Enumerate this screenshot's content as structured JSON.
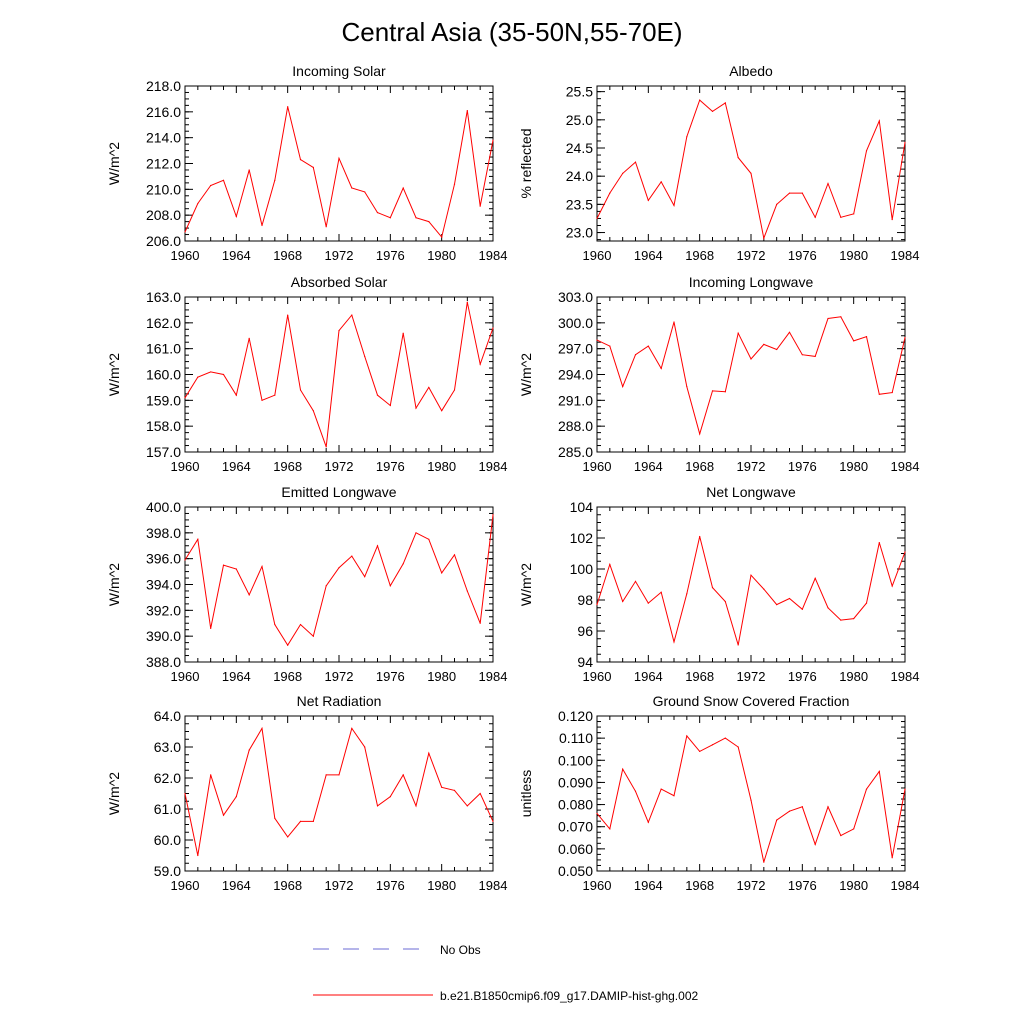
{
  "title": "Central Asia (35-50N,55-70E)",
  "colors": {
    "model": "#ff0000",
    "obs": "#6b6bd6",
    "axes": "#000000"
  },
  "legend": [
    {
      "label": "No Obs",
      "style": "dashed",
      "color": "#6b6bd6"
    },
    {
      "label": "b.e21.B1850cmip6.f09_g17.DAMIP-hist-ghg.002",
      "style": "solid",
      "color": "#ff0000"
    }
  ],
  "chart_data": [
    {
      "type": "line",
      "title": "Incoming Solar",
      "xlabel": "",
      "ylabel": "W/m^2",
      "xlim": [
        1960,
        1984
      ],
      "ylim": [
        206.0,
        218.0
      ],
      "xticks": [
        "1960",
        "1964",
        "1968",
        "1972",
        "1976",
        "1980",
        "1984"
      ],
      "yticks": [
        "206.0",
        "208.0",
        "210.0",
        "212.0",
        "214.0",
        "216.0",
        "218.0"
      ],
      "x": [
        1960,
        1961,
        1962,
        1963,
        1964,
        1965,
        1966,
        1967,
        1968,
        1969,
        1970,
        1971,
        1972,
        1973,
        1974,
        1975,
        1976,
        1977,
        1978,
        1979,
        1980,
        1981,
        1982,
        1983,
        1984
      ],
      "series": [
        {
          "name": "b.e21.B1850cmip6.f09_g17.DAMIP-hist-ghg.002",
          "values": [
            206.7,
            208.9,
            210.3,
            210.7,
            207.9,
            211.5,
            207.2,
            210.7,
            216.4,
            212.3,
            211.7,
            207.1,
            212.4,
            210.1,
            209.8,
            208.2,
            207.8,
            210.1,
            207.8,
            207.5,
            206.3,
            210.4,
            216.1,
            208.7,
            213.8
          ]
        }
      ]
    },
    {
      "type": "line",
      "title": "Albedo",
      "xlabel": "",
      "ylabel": "% reflected",
      "xlim": [
        1960,
        1984
      ],
      "ylim": [
        22.85,
        25.6
      ],
      "xticks": [
        "1960",
        "1964",
        "1968",
        "1972",
        "1976",
        "1980",
        "1984"
      ],
      "yticks": [
        "23.0",
        "23.5",
        "24.0",
        "24.5",
        "25.0",
        "25.5"
      ],
      "x": [
        1960,
        1961,
        1962,
        1963,
        1964,
        1965,
        1966,
        1967,
        1968,
        1969,
        1970,
        1971,
        1972,
        1973,
        1974,
        1975,
        1976,
        1977,
        1978,
        1979,
        1980,
        1981,
        1982,
        1983,
        1984
      ],
      "series": [
        {
          "name": "b.e21.B1850cmip6.f09_g17.DAMIP-hist-ghg.002",
          "values": [
            23.25,
            23.7,
            24.05,
            24.25,
            23.57,
            23.9,
            23.48,
            24.7,
            25.35,
            25.15,
            25.3,
            24.33,
            24.05,
            22.9,
            23.5,
            23.7,
            23.7,
            23.27,
            23.87,
            23.27,
            23.33,
            24.45,
            24.98,
            23.23,
            24.6
          ]
        }
      ]
    },
    {
      "type": "line",
      "title": "Absorbed Solar",
      "xlabel": "",
      "ylabel": "W/m^2",
      "xlim": [
        1960,
        1984
      ],
      "ylim": [
        157.0,
        163.0
      ],
      "xticks": [
        "1960",
        "1964",
        "1968",
        "1972",
        "1976",
        "1980",
        "1984"
      ],
      "yticks": [
        "157.0",
        "158.0",
        "159.0",
        "160.0",
        "161.0",
        "162.0",
        "163.0"
      ],
      "x": [
        1960,
        1961,
        1962,
        1963,
        1964,
        1965,
        1966,
        1967,
        1968,
        1969,
        1970,
        1971,
        1972,
        1973,
        1974,
        1975,
        1976,
        1977,
        1978,
        1979,
        1980,
        1981,
        1982,
        1983,
        1984
      ],
      "series": [
        {
          "name": "b.e21.B1850cmip6.f09_g17.DAMIP-hist-ghg.002",
          "values": [
            159.1,
            159.9,
            160.1,
            160.0,
            159.2,
            161.4,
            159.0,
            159.2,
            162.3,
            159.4,
            158.6,
            157.2,
            161.7,
            162.3,
            160.7,
            159.2,
            158.8,
            161.6,
            158.7,
            159.5,
            158.6,
            159.4,
            162.8,
            160.4,
            161.8
          ]
        }
      ]
    },
    {
      "type": "line",
      "title": "Incoming Longwave",
      "xlabel": "",
      "ylabel": "W/m^2",
      "xlim": [
        1960,
        1984
      ],
      "ylim": [
        285.0,
        303.0
      ],
      "xticks": [
        "1960",
        "1964",
        "1968",
        "1972",
        "1976",
        "1980",
        "1984"
      ],
      "yticks": [
        "285.0",
        "288.0",
        "291.0",
        "294.0",
        "297.0",
        "300.0",
        "303.0"
      ],
      "x": [
        1960,
        1961,
        1962,
        1963,
        1964,
        1965,
        1966,
        1967,
        1968,
        1969,
        1970,
        1971,
        1972,
        1973,
        1974,
        1975,
        1976,
        1977,
        1978,
        1979,
        1980,
        1981,
        1982,
        1983,
        1984
      ],
      "series": [
        {
          "name": "b.e21.B1850cmip6.f09_g17.DAMIP-hist-ghg.002",
          "values": [
            298.0,
            297.3,
            292.6,
            296.3,
            297.3,
            294.7,
            300.1,
            292.6,
            287.1,
            292.1,
            292.0,
            298.8,
            295.8,
            297.5,
            296.9,
            298.9,
            296.3,
            296.1,
            300.5,
            300.7,
            297.9,
            298.4,
            291.7,
            291.9,
            298.3
          ]
        }
      ]
    },
    {
      "type": "line",
      "title": "Emitted Longwave",
      "xlabel": "",
      "ylabel": "W/m^2",
      "xlim": [
        1960,
        1984
      ],
      "ylim": [
        388.0,
        400.0
      ],
      "xticks": [
        "1960",
        "1964",
        "1968",
        "1972",
        "1976",
        "1980",
        "1984"
      ],
      "yticks": [
        "388.0",
        "390.0",
        "392.0",
        "394.0",
        "396.0",
        "398.0",
        "400.0"
      ],
      "x": [
        1960,
        1961,
        1962,
        1963,
        1964,
        1965,
        1966,
        1967,
        1968,
        1969,
        1970,
        1971,
        1972,
        1973,
        1974,
        1975,
        1976,
        1977,
        1978,
        1979,
        1980,
        1981,
        1982,
        1983,
        1984
      ],
      "series": [
        {
          "name": "b.e21.B1850cmip6.f09_g17.DAMIP-hist-ghg.002",
          "values": [
            395.9,
            397.5,
            390.6,
            395.5,
            395.2,
            393.2,
            395.4,
            390.9,
            389.3,
            390.9,
            390.0,
            393.9,
            395.3,
            396.2,
            394.6,
            397.0,
            393.9,
            395.6,
            398.0,
            397.5,
            394.9,
            396.3,
            393.5,
            391.0,
            399.4
          ]
        }
      ]
    },
    {
      "type": "line",
      "title": "Net Longwave",
      "xlabel": "",
      "ylabel": "W/m^2",
      "xlim": [
        1960,
        1984
      ],
      "ylim": [
        94,
        104
      ],
      "xticks": [
        "1960",
        "1964",
        "1968",
        "1972",
        "1976",
        "1980",
        "1984"
      ],
      "yticks": [
        "94",
        "96",
        "98",
        "100",
        "102",
        "104"
      ],
      "x": [
        1960,
        1961,
        1962,
        1963,
        1964,
        1965,
        1966,
        1967,
        1968,
        1969,
        1970,
        1971,
        1972,
        1973,
        1974,
        1975,
        1976,
        1977,
        1978,
        1979,
        1980,
        1981,
        1982,
        1983,
        1984
      ],
      "series": [
        {
          "name": "b.e21.B1850cmip6.f09_g17.DAMIP-hist-ghg.002",
          "values": [
            97.7,
            100.3,
            97.9,
            99.2,
            97.8,
            98.5,
            95.3,
            98.4,
            102.1,
            98.8,
            97.9,
            95.1,
            99.6,
            98.7,
            97.7,
            98.1,
            97.4,
            99.4,
            97.5,
            96.7,
            96.8,
            97.8,
            101.7,
            98.9,
            101.1
          ]
        }
      ]
    },
    {
      "type": "line",
      "title": "Net Radiation",
      "xlabel": "",
      "ylabel": "W/m^2",
      "xlim": [
        1960,
        1984
      ],
      "ylim": [
        59.0,
        64.0
      ],
      "xticks": [
        "1960",
        "1964",
        "1968",
        "1972",
        "1976",
        "1980",
        "1984"
      ],
      "yticks": [
        "59.0",
        "60.0",
        "61.0",
        "62.0",
        "63.0",
        "64.0"
      ],
      "x": [
        1960,
        1961,
        1962,
        1963,
        1964,
        1965,
        1966,
        1967,
        1968,
        1969,
        1970,
        1971,
        1972,
        1973,
        1974,
        1975,
        1976,
        1977,
        1978,
        1979,
        1980,
        1981,
        1982,
        1983,
        1984
      ],
      "series": [
        {
          "name": "b.e21.B1850cmip6.f09_g17.DAMIP-hist-ghg.002",
          "values": [
            61.5,
            59.5,
            62.1,
            60.8,
            61.4,
            62.9,
            63.6,
            60.7,
            60.1,
            60.6,
            60.6,
            62.1,
            62.1,
            63.6,
            63.0,
            61.1,
            61.4,
            62.1,
            61.1,
            62.8,
            61.7,
            61.6,
            61.1,
            61.5,
            60.6
          ]
        }
      ]
    },
    {
      "type": "line",
      "title": "Ground Snow Covered Fraction",
      "xlabel": "",
      "ylabel": "unitless",
      "xlim": [
        1960,
        1984
      ],
      "ylim": [
        0.05,
        0.12
      ],
      "xticks": [
        "1960",
        "1964",
        "1968",
        "1972",
        "1976",
        "1980",
        "1984"
      ],
      "yticks": [
        "0.050",
        "0.060",
        "0.070",
        "0.080",
        "0.090",
        "0.100",
        "0.110",
        "0.120"
      ],
      "x": [
        1960,
        1961,
        1962,
        1963,
        1964,
        1965,
        1966,
        1967,
        1968,
        1969,
        1970,
        1971,
        1972,
        1973,
        1974,
        1975,
        1976,
        1977,
        1978,
        1979,
        1980,
        1981,
        1982,
        1983,
        1984
      ],
      "series": [
        {
          "name": "b.e21.B1850cmip6.f09_g17.DAMIP-hist-ghg.002",
          "values": [
            0.076,
            0.069,
            0.096,
            0.086,
            0.072,
            0.087,
            0.084,
            0.111,
            0.104,
            0.107,
            0.11,
            0.106,
            0.082,
            0.054,
            0.073,
            0.077,
            0.079,
            0.062,
            0.079,
            0.066,
            0.069,
            0.087,
            0.095,
            0.056,
            0.087
          ]
        }
      ]
    }
  ]
}
